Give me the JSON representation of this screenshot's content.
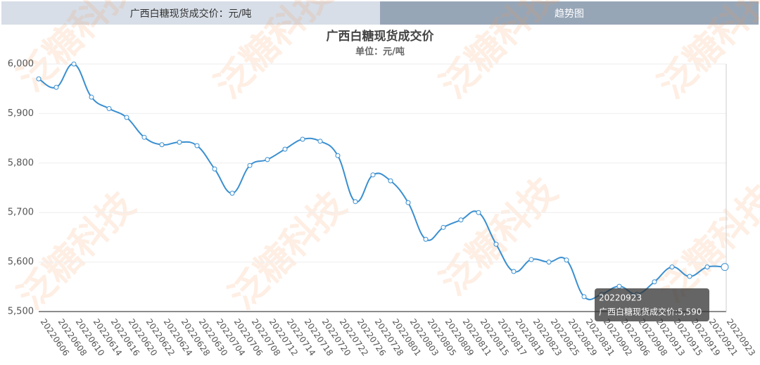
{
  "tabs": {
    "left": "广西白糖现货成交价：元/吨",
    "right": "趋势图"
  },
  "watermark": "泛糖科技",
  "chart_data": {
    "type": "line",
    "title": "广西白糖现货成交价",
    "subtitle": "单位：元/吨",
    "categories": [
      "20220606",
      "20220608",
      "20220610",
      "20220614",
      "20220616",
      "20220620",
      "20220622",
      "20220624",
      "20220628",
      "20220630",
      "20220704",
      "20220706",
      "20220708",
      "20220712",
      "20220714",
      "20220718",
      "20220720",
      "20220722",
      "20220726",
      "20220728",
      "20220801",
      "20220803",
      "20220805",
      "20220809",
      "20220811",
      "20220815",
      "20220817",
      "20220819",
      "20220823",
      "20220825",
      "20220829",
      "20220831",
      "20220902",
      "20220906",
      "20220908",
      "20220913",
      "20220915",
      "20220919",
      "20220921",
      "20220923"
    ],
    "series": [
      {
        "name": "广西白糖现货成交价",
        "color": "#3a8fd0",
        "values": [
          5970,
          5953,
          6000,
          5933,
          5910,
          5892,
          5852,
          5837,
          5842,
          5835,
          5788,
          5739,
          5795,
          5807,
          5828,
          5848,
          5844,
          5815,
          5722,
          5776,
          5764,
          5720,
          5646,
          5670,
          5685,
          5700,
          5636,
          5581,
          5605,
          5600,
          5604,
          5530,
          5535,
          5551,
          5535,
          5560,
          5590,
          5571,
          5590,
          5590
        ]
      }
    ],
    "ylim": [
      5500,
      6000
    ],
    "yticks": [
      {
        "value": 5500,
        "label": "5,500"
      },
      {
        "value": 5600,
        "label": "5,600"
      },
      {
        "value": 5700,
        "label": "5,700"
      },
      {
        "value": 5800,
        "label": "5,800"
      },
      {
        "value": 5900,
        "label": "5,900"
      },
      {
        "value": 6000,
        "label": "6,000"
      }
    ],
    "grid": true,
    "tooltip": {
      "title": "20220923",
      "text": "广西白糖现货成交价:5,590"
    }
  }
}
